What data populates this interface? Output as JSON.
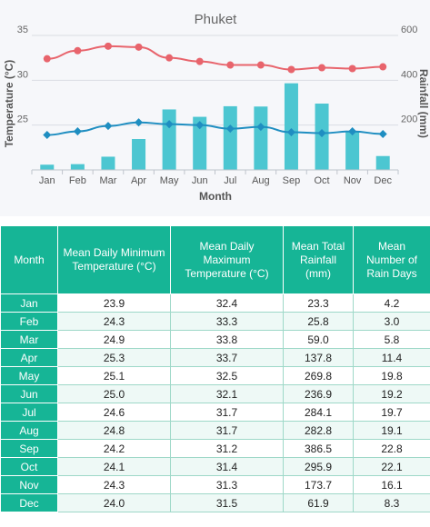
{
  "chart_data": {
    "type": "bar+line",
    "title": "Phuket",
    "xlabel": "Month",
    "ylabel_left": "Temperature (°C)",
    "ylabel_right": "Rainfall (mm)",
    "categories": [
      "Jan",
      "Feb",
      "Mar",
      "Apr",
      "May",
      "Jun",
      "Jul",
      "Aug",
      "Sep",
      "Oct",
      "Nov",
      "Dec"
    ],
    "left_axis": {
      "ticks": [
        "25",
        "30",
        "35"
      ],
      "range": [
        20,
        35
      ]
    },
    "right_axis": {
      "ticks": [
        "200",
        "400",
        "600"
      ],
      "range": [
        0,
        600
      ]
    },
    "grid": true,
    "series": [
      {
        "type": "line",
        "axis": "left",
        "color": "#e8646c",
        "values": [
          32.4,
          33.3,
          33.8,
          33.7,
          32.5,
          32.1,
          31.7,
          31.7,
          31.2,
          31.4,
          31.3,
          31.5
        ]
      },
      {
        "type": "line",
        "axis": "left",
        "color": "#1f8ec1",
        "values": [
          23.9,
          24.3,
          24.9,
          25.3,
          25.1,
          25.0,
          24.6,
          24.8,
          24.2,
          24.1,
          24.3,
          24.0
        ]
      },
      {
        "type": "bar",
        "axis": "right",
        "color": "#4cc6d1",
        "values": [
          23.3,
          25.8,
          59.0,
          137.8,
          269.8,
          236.9,
          284.1,
          282.8,
          386.5,
          295.9,
          173.7,
          61.9
        ]
      }
    ]
  },
  "table": {
    "headers": [
      "Month",
      "Mean Daily Minimum Temperature (°C)",
      "Mean Daily Maximum Temperature (°C)",
      "Mean Total Rainfall (mm)",
      "Mean Number of Rain Days"
    ],
    "rows": [
      [
        "Jan",
        "23.9",
        "32.4",
        "23.3",
        "4.2"
      ],
      [
        "Feb",
        "24.3",
        "33.3",
        "25.8",
        "3.0"
      ],
      [
        "Mar",
        "24.9",
        "33.8",
        "59.0",
        "5.8"
      ],
      [
        "Apr",
        "25.3",
        "33.7",
        "137.8",
        "11.4"
      ],
      [
        "May",
        "25.1",
        "32.5",
        "269.8",
        "19.8"
      ],
      [
        "Jun",
        "25.0",
        "32.1",
        "236.9",
        "19.2"
      ],
      [
        "Jul",
        "24.6",
        "31.7",
        "284.1",
        "19.7"
      ],
      [
        "Aug",
        "24.8",
        "31.7",
        "282.8",
        "19.1"
      ],
      [
        "Sep",
        "24.2",
        "31.2",
        "386.5",
        "22.8"
      ],
      [
        "Oct",
        "24.1",
        "31.4",
        "295.9",
        "22.1"
      ],
      [
        "Nov",
        "24.3",
        "31.3",
        "173.7",
        "16.1"
      ],
      [
        "Dec",
        "24.0",
        "31.5",
        "61.9",
        "8.3"
      ]
    ]
  }
}
